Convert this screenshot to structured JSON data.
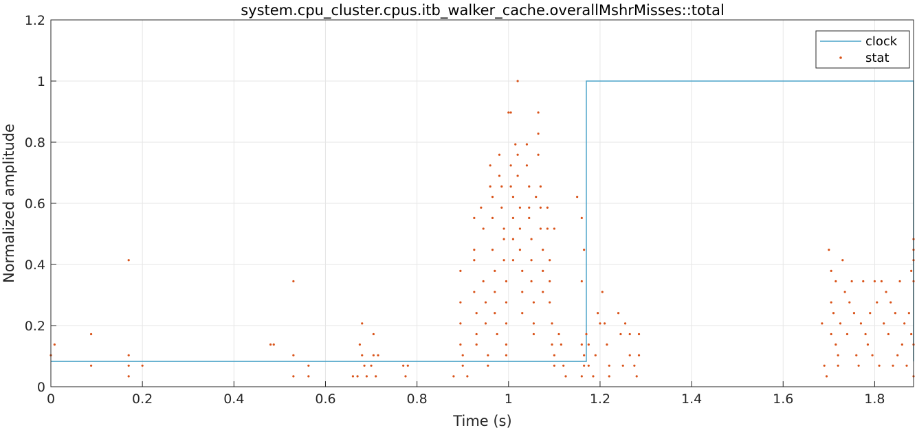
{
  "chart_data": {
    "type": "line",
    "title": "system.cpu_cluster.cpus.itb_walker_cache.overallMshrMisses::total",
    "xlabel": "Time (s)",
    "ylabel": "Normalized amplitude",
    "xlim": [
      0,
      1.885
    ],
    "ylim": [
      0,
      1.2
    ],
    "x_ticks": [
      0,
      0.2,
      0.4,
      0.6,
      0.8,
      1,
      1.2,
      1.4,
      1.6,
      1.8
    ],
    "x_tick_labels": [
      "0",
      "0.2",
      "0.4",
      "0.6",
      "0.8",
      "1",
      "1.2",
      "1.4",
      "1.6",
      "1.8"
    ],
    "y_ticks": [
      0,
      0.2,
      0.4,
      0.6,
      0.8,
      1,
      1.2
    ],
    "y_tick_labels": [
      "0",
      "0.2",
      "0.4",
      "0.6",
      "0.8",
      "1",
      "1.2"
    ],
    "grid": true,
    "legend_position": "top-right",
    "series": [
      {
        "name": "clock",
        "style": "step-line",
        "color": "#4aa3c8",
        "x": [
          0,
          1.17,
          1.17,
          1.885,
          1.885
        ],
        "y": [
          0.083,
          0.083,
          1.0,
          1.0,
          0.083
        ]
      },
      {
        "name": "stat",
        "style": "dots",
        "color": "#d95319",
        "points": [
          [
            0.0,
            0.103
          ],
          [
            0.008,
            0.138
          ],
          [
            0.088,
            0.172
          ],
          [
            0.088,
            0.069
          ],
          [
            0.17,
            0.414
          ],
          [
            0.17,
            0.103
          ],
          [
            0.17,
            0.069
          ],
          [
            0.17,
            0.034
          ],
          [
            0.2,
            0.069
          ],
          [
            0.48,
            0.138
          ],
          [
            0.487,
            0.138
          ],
          [
            0.53,
            0.345
          ],
          [
            0.53,
            0.103
          ],
          [
            0.53,
            0.034
          ],
          [
            0.563,
            0.069
          ],
          [
            0.563,
            0.034
          ],
          [
            0.66,
            0.034
          ],
          [
            0.67,
            0.034
          ],
          [
            0.675,
            0.138
          ],
          [
            0.68,
            0.207
          ],
          [
            0.68,
            0.103
          ],
          [
            0.685,
            0.069
          ],
          [
            0.69,
            0.034
          ],
          [
            0.7,
            0.069
          ],
          [
            0.705,
            0.172
          ],
          [
            0.705,
            0.103
          ],
          [
            0.71,
            0.034
          ],
          [
            0.715,
            0.103
          ],
          [
            0.77,
            0.069
          ],
          [
            0.775,
            0.034
          ],
          [
            0.78,
            0.069
          ],
          [
            0.88,
            0.034
          ],
          [
            0.895,
            0.379
          ],
          [
            0.895,
            0.276
          ],
          [
            0.895,
            0.207
          ],
          [
            0.895,
            0.138
          ],
          [
            0.9,
            0.103
          ],
          [
            0.9,
            0.069
          ],
          [
            0.91,
            0.034
          ],
          [
            0.925,
            0.552
          ],
          [
            0.925,
            0.448
          ],
          [
            0.925,
            0.414
          ],
          [
            0.925,
            0.31
          ],
          [
            0.93,
            0.241
          ],
          [
            0.93,
            0.172
          ],
          [
            0.93,
            0.138
          ],
          [
            0.94,
            0.586
          ],
          [
            0.945,
            0.517
          ],
          [
            0.945,
            0.345
          ],
          [
            0.95,
            0.276
          ],
          [
            0.95,
            0.207
          ],
          [
            0.955,
            0.103
          ],
          [
            0.955,
            0.069
          ],
          [
            0.96,
            0.724
          ],
          [
            0.96,
            0.655
          ],
          [
            0.965,
            0.621
          ],
          [
            0.965,
            0.552
          ],
          [
            0.965,
            0.448
          ],
          [
            0.97,
            0.379
          ],
          [
            0.97,
            0.31
          ],
          [
            0.97,
            0.241
          ],
          [
            0.975,
            0.172
          ],
          [
            0.98,
            0.759
          ],
          [
            0.98,
            0.69
          ],
          [
            0.985,
            0.655
          ],
          [
            0.985,
            0.586
          ],
          [
            0.99,
            0.517
          ],
          [
            0.99,
            0.483
          ],
          [
            0.99,
            0.414
          ],
          [
            0.995,
            0.345
          ],
          [
            0.995,
            0.276
          ],
          [
            0.995,
            0.207
          ],
          [
            0.995,
            0.138
          ],
          [
            0.995,
            0.103
          ],
          [
            1.0,
            0.897
          ],
          [
            1.005,
            0.897
          ],
          [
            1.005,
            0.724
          ],
          [
            1.005,
            0.655
          ],
          [
            1.01,
            0.621
          ],
          [
            1.01,
            0.552
          ],
          [
            1.01,
            0.483
          ],
          [
            1.01,
            0.414
          ],
          [
            1.015,
            0.793
          ],
          [
            1.02,
            1.0
          ],
          [
            1.02,
            0.759
          ],
          [
            1.02,
            0.69
          ],
          [
            1.025,
            0.586
          ],
          [
            1.025,
            0.517
          ],
          [
            1.025,
            0.448
          ],
          [
            1.03,
            0.379
          ],
          [
            1.03,
            0.31
          ],
          [
            1.03,
            0.241
          ],
          [
            1.04,
            0.793
          ],
          [
            1.04,
            0.724
          ],
          [
            1.045,
            0.655
          ],
          [
            1.045,
            0.586
          ],
          [
            1.045,
            0.552
          ],
          [
            1.05,
            0.483
          ],
          [
            1.05,
            0.414
          ],
          [
            1.05,
            0.345
          ],
          [
            1.055,
            0.276
          ],
          [
            1.055,
            0.207
          ],
          [
            1.055,
            0.172
          ],
          [
            1.06,
            0.621
          ],
          [
            1.065,
            0.897
          ],
          [
            1.065,
            0.828
          ],
          [
            1.065,
            0.759
          ],
          [
            1.07,
            0.655
          ],
          [
            1.07,
            0.586
          ],
          [
            1.07,
            0.517
          ],
          [
            1.075,
            0.448
          ],
          [
            1.075,
            0.379
          ],
          [
            1.075,
            0.31
          ],
          [
            1.085,
            0.586
          ],
          [
            1.085,
            0.517
          ],
          [
            1.09,
            0.414
          ],
          [
            1.09,
            0.345
          ],
          [
            1.09,
            0.276
          ],
          [
            1.095,
            0.207
          ],
          [
            1.095,
            0.138
          ],
          [
            1.1,
            0.517
          ],
          [
            1.1,
            0.103
          ],
          [
            1.1,
            0.069
          ],
          [
            1.11,
            0.172
          ],
          [
            1.115,
            0.138
          ],
          [
            1.12,
            0.069
          ],
          [
            1.125,
            0.034
          ],
          [
            1.15,
            0.621
          ],
          [
            1.16,
            0.552
          ],
          [
            1.165,
            0.448
          ],
          [
            1.16,
            0.345
          ],
          [
            1.16,
            0.138
          ],
          [
            1.165,
            0.103
          ],
          [
            1.165,
            0.069
          ],
          [
            1.16,
            0.034
          ],
          [
            1.17,
            0.172
          ],
          [
            1.175,
            0.138
          ],
          [
            1.175,
            0.069
          ],
          [
            1.185,
            0.034
          ],
          [
            1.19,
            0.103
          ],
          [
            1.195,
            0.241
          ],
          [
            1.2,
            0.207
          ],
          [
            1.205,
            0.31
          ],
          [
            1.21,
            0.207
          ],
          [
            1.215,
            0.138
          ],
          [
            1.22,
            0.069
          ],
          [
            1.22,
            0.034
          ],
          [
            1.24,
            0.241
          ],
          [
            1.245,
            0.172
          ],
          [
            1.25,
            0.069
          ],
          [
            1.255,
            0.207
          ],
          [
            1.265,
            0.172
          ],
          [
            1.265,
            0.103
          ],
          [
            1.275,
            0.069
          ],
          [
            1.28,
            0.034
          ],
          [
            1.285,
            0.172
          ],
          [
            1.285,
            0.103
          ],
          [
            1.685,
            0.207
          ],
          [
            1.69,
            0.069
          ],
          [
            1.695,
            0.034
          ],
          [
            1.7,
            0.448
          ],
          [
            1.705,
            0.379
          ],
          [
            1.705,
            0.276
          ],
          [
            1.705,
            0.172
          ],
          [
            1.71,
            0.241
          ],
          [
            1.715,
            0.345
          ],
          [
            1.715,
            0.138
          ],
          [
            1.72,
            0.103
          ],
          [
            1.72,
            0.069
          ],
          [
            1.725,
            0.207
          ],
          [
            1.73,
            0.414
          ],
          [
            1.735,
            0.31
          ],
          [
            1.74,
            0.172
          ],
          [
            1.745,
            0.276
          ],
          [
            1.75,
            0.345
          ],
          [
            1.755,
            0.241
          ],
          [
            1.76,
            0.103
          ],
          [
            1.765,
            0.069
          ],
          [
            1.77,
            0.207
          ],
          [
            1.775,
            0.345
          ],
          [
            1.78,
            0.172
          ],
          [
            1.785,
            0.138
          ],
          [
            1.79,
            0.241
          ],
          [
            1.795,
            0.103
          ],
          [
            1.8,
            0.345
          ],
          [
            1.805,
            0.276
          ],
          [
            1.81,
            0.069
          ],
          [
            1.815,
            0.345
          ],
          [
            1.82,
            0.207
          ],
          [
            1.825,
            0.31
          ],
          [
            1.83,
            0.172
          ],
          [
            1.835,
            0.276
          ],
          [
            1.84,
            0.069
          ],
          [
            1.845,
            0.241
          ],
          [
            1.85,
            0.103
          ],
          [
            1.855,
            0.345
          ],
          [
            1.86,
            0.138
          ],
          [
            1.865,
            0.207
          ],
          [
            1.87,
            0.069
          ],
          [
            1.875,
            0.241
          ],
          [
            1.88,
            0.379
          ],
          [
            1.88,
            0.172
          ],
          [
            1.885,
            0.483
          ],
          [
            1.885,
            0.448
          ],
          [
            1.885,
            0.414
          ],
          [
            1.885,
            0.345
          ],
          [
            1.885,
            0.138
          ],
          [
            1.885,
            0.034
          ]
        ]
      }
    ]
  }
}
